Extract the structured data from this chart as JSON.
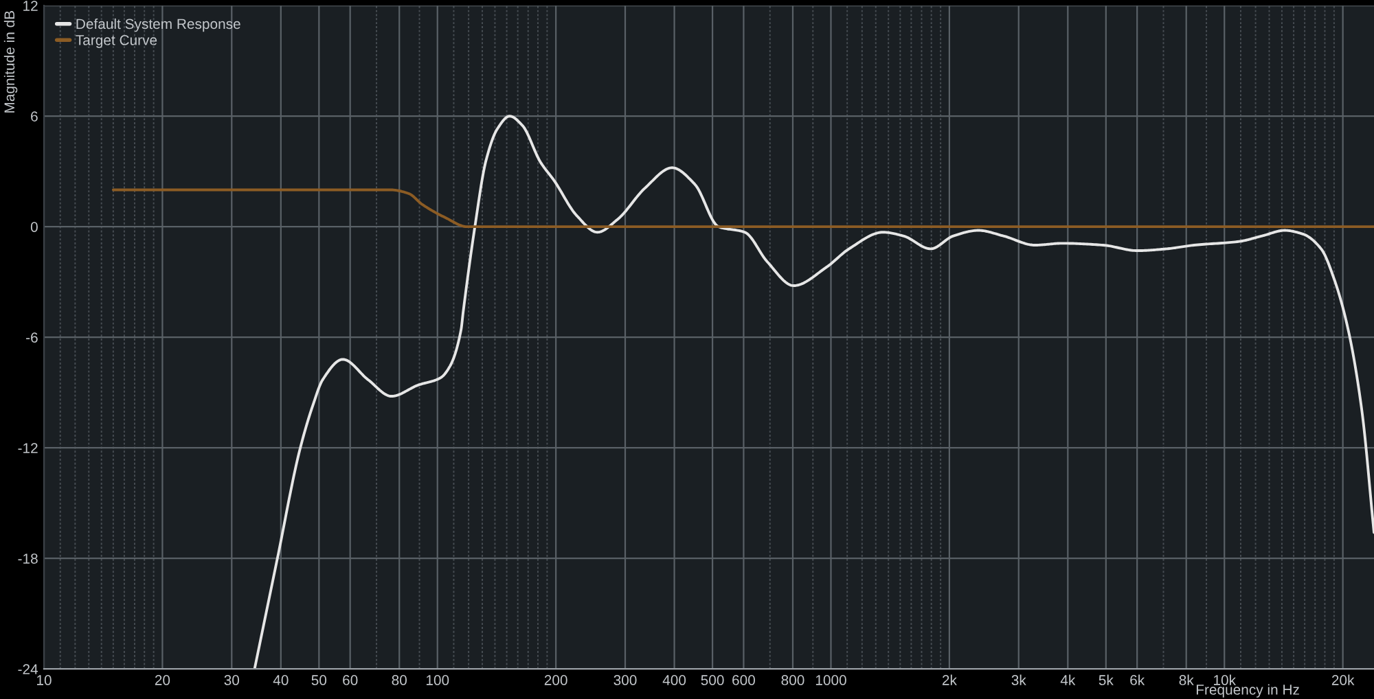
{
  "chart_data": {
    "type": "line",
    "xlabel": "Frequency in Hz",
    "ylabel": "Magnitude in dB",
    "log": "x",
    "grid": true,
    "legend": "top left",
    "xlim": [
      10,
      24000
    ],
    "ylim": [
      -24,
      12
    ],
    "yticks": [
      -24,
      -18,
      -12,
      -6,
      0,
      6,
      12
    ],
    "xticks": [
      10,
      {
        "value": 11,
        "label": null
      },
      {
        "value": 12,
        "label": null
      },
      {
        "value": 13,
        "label": null
      },
      {
        "value": 14,
        "label": null
      },
      {
        "value": 15,
        "label": null
      },
      {
        "value": 16,
        "label": null
      },
      {
        "value": 17,
        "label": null
      },
      {
        "value": 18,
        "label": null
      },
      {
        "value": 19,
        "label": null
      },
      20,
      30,
      40,
      50,
      60,
      {
        "value": 70,
        "label": null
      },
      80,
      {
        "value": 90,
        "label": null
      },
      100,
      {
        "value": 110,
        "label": null
      },
      {
        "value": 120,
        "label": null
      },
      {
        "value": 130,
        "label": null
      },
      {
        "value": 140,
        "label": null
      },
      {
        "value": 150,
        "label": null
      },
      {
        "value": 160,
        "label": null
      },
      {
        "value": 170,
        "label": null
      },
      {
        "value": 180,
        "label": null
      },
      {
        "value": 190,
        "label": null
      },
      200,
      300,
      400,
      500,
      600,
      {
        "value": 700,
        "label": null
      },
      800,
      {
        "value": 900,
        "label": null
      },
      1000,
      {
        "value": 1100,
        "label": null
      },
      {
        "value": 1200,
        "label": null
      },
      {
        "value": 1300,
        "label": null
      },
      {
        "value": 1400,
        "label": null
      },
      {
        "value": 1500,
        "label": null
      },
      {
        "value": 1600,
        "label": null
      },
      {
        "value": 1700,
        "label": null
      },
      {
        "value": 1800,
        "label": null
      },
      {
        "value": 1900,
        "label": null
      },
      {
        "value": 2000,
        "label": "2k"
      },
      {
        "value": 3000,
        "label": "3k"
      },
      {
        "value": 4000,
        "label": "4k"
      },
      {
        "value": 5000,
        "label": "5k"
      },
      {
        "value": 6000,
        "label": "6k"
      },
      {
        "value": 7000,
        "label": null
      },
      {
        "value": 8000,
        "label": "8k"
      },
      {
        "value": 9000,
        "label": null
      },
      {
        "value": 10000,
        "label": "10k"
      },
      {
        "value": 11000,
        "label": null
      },
      {
        "value": 12000,
        "label": null
      },
      {
        "value": 13000,
        "label": null
      },
      {
        "value": 14000,
        "label": null
      },
      {
        "value": 15000,
        "label": null
      },
      {
        "value": 16000,
        "label": null
      },
      {
        "value": 17000,
        "label": null
      },
      {
        "value": 18000,
        "label": null
      },
      {
        "value": 19000,
        "label": null
      },
      {
        "value": 20000,
        "label": "20k"
      }
    ],
    "series": [
      {
        "name": "Default System Response",
        "color": "#e6e6e6",
        "x": [
          34.3,
          39.2,
          44.7,
          48.4,
          51.1,
          57.5,
          66.6,
          76.4,
          89.2,
          101.8,
          107.4,
          114.8,
          116.3,
          124.3,
          132.9,
          141.9,
          152.6,
          164.3,
          182.8,
          198,
          226,
          255,
          287,
          337,
          395,
          451,
          518,
          604,
          689,
          804,
          974,
          1112,
          1357,
          1528,
          1793,
          2047,
          2370,
          2743,
          3303,
          3874,
          4920,
          6004,
          7138,
          8373,
          10910,
          12470,
          14230,
          15840,
          17610,
          19050,
          20640,
          22360,
          24000
        ],
        "values": [
          -24,
          -18.0,
          -12.1,
          -9.6,
          -8.3,
          -7.2,
          -8.3,
          -9.2,
          -8.6,
          -8.2,
          -7.6,
          -5.6,
          -4.6,
          -0.1,
          3.6,
          5.3,
          6.0,
          5.5,
          3.5,
          2.5,
          0.6,
          -0.3,
          0.4,
          2.1,
          3.2,
          2.3,
          0.0,
          -0.3,
          -1.9,
          -3.2,
          -2.2,
          -1.2,
          -0.3,
          -0.5,
          -1.2,
          -0.5,
          -0.2,
          -0.5,
          -1.0,
          -0.9,
          -1.0,
          -1.3,
          -1.2,
          -1.0,
          -0.8,
          -0.5,
          -0.2,
          -0.4,
          -1.2,
          -2.9,
          -5.6,
          -10.0,
          -16.6
        ]
      },
      {
        "name": "Target Curve",
        "color": "#8c5c24",
        "x": [
          15,
          76.2,
          84.5,
          91.6,
          104.6,
          119,
          24000
        ],
        "values": [
          2.0,
          2.0,
          1.8,
          1.2,
          0.5,
          0.0,
          0.0
        ]
      }
    ]
  }
}
